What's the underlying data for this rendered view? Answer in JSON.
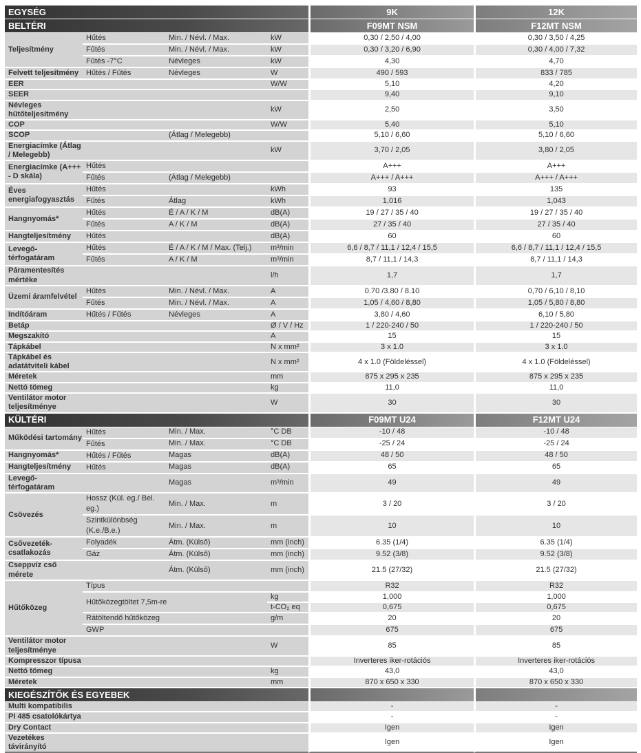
{
  "header": {
    "title": "EGYSÉG",
    "capacities": [
      "9K",
      "12K"
    ]
  },
  "colors": {
    "header_dark": "#3a3a3a",
    "label_bg": "#d3d3d3",
    "stripe": "#e6e6e6"
  },
  "sections": [
    {
      "title": "BELTÉRI",
      "models": [
        "F09MT NSM",
        "F12MT NSM"
      ],
      "groups": [
        {
          "label": "Teljesítmény",
          "rows": [
            {
              "sub": "Hűtés",
              "cond": "Min. / Névl. / Max.",
              "unit": "kW",
              "v": [
                "0,30 / 2,50 / 4,00",
                "0,30 / 3,50 / 4,25"
              ]
            },
            {
              "sub": "Fűtés",
              "cond": "Min. / Névl. / Max.",
              "unit": "kW",
              "v": [
                "0,30 / 3,20 / 6,90",
                "0,30 / 4,00 / 7,32"
              ]
            },
            {
              "sub": "Fűtés -7°C",
              "cond": "Névleges",
              "unit": "kW",
              "v": [
                "4,30",
                "4,70"
              ]
            }
          ]
        },
        {
          "label": "Felvett teljesítmény",
          "rows": [
            {
              "sub": "Hűtés / Fűtés",
              "cond": "Névleges",
              "unit": "W",
              "v": [
                "490 / 593",
                "833 / 785"
              ]
            }
          ]
        },
        {
          "label": "EER",
          "rows": [
            {
              "sub": "",
              "cond": "",
              "unit": "W/W",
              "v": [
                "5,10",
                "4,20"
              ]
            }
          ]
        },
        {
          "label": "SEER",
          "rows": [
            {
              "sub": "",
              "cond": "",
              "unit": "",
              "v": [
                "9,40",
                "9,10"
              ]
            }
          ]
        },
        {
          "label": "Névleges hűtőteljesítmény",
          "rows": [
            {
              "sub": "",
              "cond": "",
              "unit": "kW",
              "v": [
                "2,50",
                "3,50"
              ]
            }
          ]
        },
        {
          "label": "COP",
          "rows": [
            {
              "sub": "",
              "cond": "",
              "unit": "W/W",
              "v": [
                "5,40",
                "5,10"
              ]
            }
          ]
        },
        {
          "label": "SCOP",
          "rows": [
            {
              "sub": "",
              "cond": "(Átlag / Melegebb)",
              "unit": "",
              "v": [
                "5,10 / 6,60",
                "5,10 / 6,60"
              ]
            }
          ]
        },
        {
          "label": "Energiacímke (Átlag / Melegebb)",
          "rows": [
            {
              "sub": "",
              "cond": "",
              "unit": "kW",
              "v": [
                "3,70 / 2,05",
                "3,80 / 2,05"
              ]
            }
          ]
        },
        {
          "label": "Energiacímke (A+++ - D skála)",
          "rows": [
            {
              "sub": "Hűtés",
              "cond": "",
              "unit": "",
              "v": [
                "A+++",
                "A+++"
              ]
            },
            {
              "sub": "Fűtés",
              "cond": "(Átlag / Melegebb)",
              "unit": "",
              "v": [
                "A+++ / A+++",
                "A+++ / A+++"
              ]
            }
          ]
        },
        {
          "label": "Éves energiafogyasztás",
          "rows": [
            {
              "sub": "Hűtés",
              "cond": "",
              "unit": "kWh",
              "v": [
                "93",
                "135"
              ]
            },
            {
              "sub": "Fűtés",
              "cond": "Átlag",
              "unit": "kWh",
              "v": [
                "1,016",
                "1,043"
              ]
            }
          ]
        },
        {
          "label": "Hangnyomás*",
          "rows": [
            {
              "sub": "Hűtés",
              "cond": "É / A / K / M",
              "unit": "dB(A)",
              "v": [
                "19 / 27 / 35 / 40",
                "19 / 27 / 35 / 40"
              ]
            },
            {
              "sub": "Fűtés",
              "cond": "A / K / M",
              "unit": "dB(A)",
              "v": [
                "27 / 35 / 40",
                "27 / 35 / 40"
              ]
            }
          ]
        },
        {
          "label": "Hangteljesítmény",
          "rows": [
            {
              "sub": "Hűtés",
              "cond": "",
              "unit": "dB(A)",
              "v": [
                "60",
                "60"
              ]
            }
          ]
        },
        {
          "label": "Levegő-térfogatáram",
          "rows": [
            {
              "sub": "Hűtés",
              "cond": "É / A / K / M / Max. (Telj.)",
              "unit": "m³/min",
              "v": [
                "6,6 / 8,7 / 11,1 / 12,4 / 15,5",
                "6,6 / 8,7 / 11,1 / 12,4 / 15,5"
              ]
            },
            {
              "sub": "Fűtés",
              "cond": "A / K / M",
              "unit": "m³/min",
              "v": [
                "8,7 / 11,1 / 14,3",
                "8,7 / 11,1 / 14,3"
              ]
            }
          ]
        },
        {
          "label": "Páramentesítés mértéke",
          "rows": [
            {
              "sub": "",
              "cond": "",
              "unit": "l/h",
              "v": [
                "1,7",
                "1,7"
              ]
            }
          ]
        },
        {
          "label": "Üzemi áramfelvétel",
          "rows": [
            {
              "sub": "Hűtés",
              "cond": "Min. / Névl. / Max.",
              "unit": "A",
              "v": [
                "0.70 /3.80 / 8.10",
                "0,70 / 6,10 / 8,10"
              ]
            },
            {
              "sub": "Fűtés",
              "cond": "Min. / Névl. / Max.",
              "unit": "A",
              "v": [
                "1,05 / 4,60 / 8,80",
                "1,05 / 5,80 / 8,80"
              ]
            }
          ]
        },
        {
          "label": "Indítóáram",
          "rows": [
            {
              "sub": "Hűtés / Fűtés",
              "cond": "Névleges",
              "unit": "A",
              "v": [
                "3,80 / 4,60",
                "6,10 / 5,80"
              ]
            }
          ]
        },
        {
          "label": "Betáp",
          "rows": [
            {
              "sub": "",
              "cond": "",
              "unit": "Ø / V / Hz",
              "v": [
                "1 / 220-240 / 50",
                "1 / 220-240 / 50"
              ]
            }
          ]
        },
        {
          "label": "Megszakító",
          "rows": [
            {
              "sub": "",
              "cond": "",
              "unit": "A",
              "v": [
                "15",
                "15"
              ]
            }
          ]
        },
        {
          "label": "Tápkábel",
          "rows": [
            {
              "sub": "",
              "cond": "",
              "unit": "N x mm²",
              "v": [
                "3 x 1.0",
                "3 x 1.0"
              ]
            }
          ]
        },
        {
          "label": "Tápkábel és adatátviteli kábel",
          "rows": [
            {
              "sub": "",
              "cond": "",
              "unit": "N x mm²",
              "v": [
                "4 x 1.0 (Földeléssel)",
                "4 x 1.0 (Földeléssel)"
              ]
            }
          ]
        },
        {
          "label": "Méretek",
          "rows": [
            {
              "sub": "",
              "cond": "",
              "unit": "mm",
              "v": [
                "875 x 295 x 235",
                "875 x 295 x 235"
              ]
            }
          ]
        },
        {
          "label": "Nettó tömeg",
          "rows": [
            {
              "sub": "",
              "cond": "",
              "unit": "kg",
              "v": [
                "11,0",
                "11,0"
              ]
            }
          ]
        },
        {
          "label": "Ventilátor motor teljesítménye",
          "rows": [
            {
              "sub": "",
              "cond": "",
              "unit": "W",
              "v": [
                "30",
                "30"
              ]
            }
          ]
        }
      ]
    },
    {
      "title": "KÜLTÉRI",
      "models": [
        "F09MT U24",
        "F12MT U24"
      ],
      "groups": [
        {
          "label": "Működési tartomány",
          "rows": [
            {
              "sub": "Hűtés",
              "cond": "Min. / Max.",
              "unit": "°C DB",
              "v": [
                "-10 / 48",
                "-10 / 48"
              ]
            },
            {
              "sub": "Fűtés",
              "cond": "Min. / Max.",
              "unit": "°C DB",
              "v": [
                "-25 / 24",
                "-25 / 24"
              ]
            }
          ]
        },
        {
          "label": "Hangnyomás*",
          "rows": [
            {
              "sub": "Hűtés / Fűtés",
              "cond": "Magas",
              "unit": "dB(A)",
              "v": [
                "48 / 50",
                "48 / 50"
              ]
            }
          ]
        },
        {
          "label": "Hangteljesítmény",
          "rows": [
            {
              "sub": "Hűtés",
              "cond": "Magas",
              "unit": "dB(A)",
              "v": [
                "65",
                "65"
              ]
            }
          ]
        },
        {
          "label": "Levegő-térfogatáram",
          "rows": [
            {
              "sub": "",
              "cond": "Magas",
              "unit": "m³/min",
              "v": [
                "49",
                "49"
              ]
            }
          ]
        },
        {
          "label": "Csövezés",
          "rows": [
            {
              "sub": "Hossz (Kül. eg./ Bel. eg.)",
              "cond": "Min. / Max.",
              "unit": "m",
              "v": [
                "3 / 20",
                "3 / 20"
              ]
            },
            {
              "sub": "Szintkülönbség (K.e./B.e.)",
              "cond": "Min. / Max.",
              "unit": "m",
              "v": [
                "10",
                "10"
              ]
            }
          ]
        },
        {
          "label": "Csővezeték-csatlakozás",
          "rows": [
            {
              "sub": "Folyadék",
              "cond": "Átm. (Külső)",
              "unit": "mm (inch)",
              "v": [
                "6.35 (1/4)",
                "6.35 (1/4)"
              ]
            },
            {
              "sub": "Gáz",
              "cond": "Átm. (Külső)",
              "unit": "mm (inch)",
              "v": [
                "9.52 (3/8)",
                "9.52 (3/8)"
              ]
            }
          ]
        },
        {
          "label": "Cseppvíz cső mérete",
          "rows": [
            {
              "sub": "",
              "cond": "Átm. (Külső)",
              "unit": "mm (inch)",
              "v": [
                "21.5 (27/32)",
                "21.5 (27/32)"
              ]
            }
          ]
        },
        {
          "label": "Hűtőközeg",
          "rows": [
            {
              "sub": "Típus",
              "cond": "",
              "unit": "",
              "v": [
                "R32",
                "R32"
              ]
            },
            {
              "sub": "Hűtőközegtöltet 7,5m-re",
              "span2": true,
              "cond": "",
              "unit": "kg",
              "v": [
                "1,000",
                "1,000"
              ]
            },
            {
              "sub": null,
              "cond": null,
              "unit": "t-CO₂ eq",
              "v": [
                "0,675",
                "0,675"
              ]
            },
            {
              "sub": "Rátöltendő hűtőközeg",
              "cond": "",
              "unit": "g/m",
              "v": [
                "20",
                "20"
              ]
            },
            {
              "sub": "GWP",
              "cond": "",
              "unit": "",
              "v": [
                "675",
                "675"
              ]
            }
          ]
        },
        {
          "label": "Ventilátor motor teljesítménye",
          "rows": [
            {
              "sub": "",
              "cond": "",
              "unit": "W",
              "v": [
                "85",
                "85"
              ]
            }
          ]
        },
        {
          "label": "Kompresszor típusa",
          "rows": [
            {
              "sub": "",
              "cond": "",
              "unit": "",
              "v": [
                "Inverteres iker-rotációs",
                "Inverteres iker-rotációs"
              ]
            }
          ]
        },
        {
          "label": "Nettó tömeg",
          "rows": [
            {
              "sub": "",
              "cond": "",
              "unit": "kg",
              "v": [
                "43,0",
                "43,0"
              ]
            }
          ]
        },
        {
          "label": "Méretek",
          "rows": [
            {
              "sub": "",
              "cond": "",
              "unit": "mm",
              "v": [
                "870 x 650 x 330",
                "870 x 650 x 330"
              ]
            }
          ]
        }
      ]
    },
    {
      "title": "KIEGÉSZÍTŐK ÉS EGYEBEK",
      "models": [
        "",
        ""
      ],
      "groups": [
        {
          "label": "Multi kompatibilis",
          "rows": [
            {
              "sub": "",
              "cond": "",
              "unit": "",
              "v": [
                "-",
                "-"
              ]
            }
          ]
        },
        {
          "label": "PI 485 csatolókártya",
          "rows": [
            {
              "sub": "",
              "cond": "",
              "unit": "",
              "v": [
                "-",
                "-"
              ]
            }
          ]
        },
        {
          "label": "Dry Contact",
          "rows": [
            {
              "sub": "",
              "cond": "",
              "unit": "",
              "v": [
                "Igen",
                "Igen"
              ]
            }
          ]
        },
        {
          "label": "Vezetékes távirányító",
          "rows": [
            {
              "sub": "",
              "cond": "",
              "unit": "",
              "v": [
                "Igen",
                "Igen"
              ]
            }
          ]
        }
      ]
    }
  ]
}
